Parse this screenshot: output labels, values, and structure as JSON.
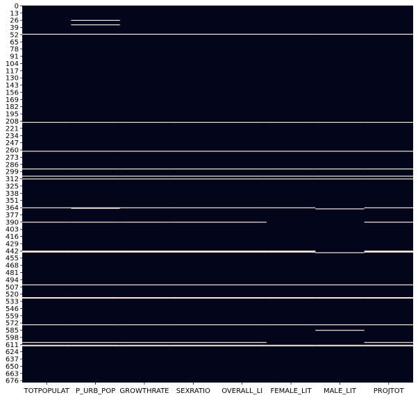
{
  "chart_data": {
    "type": "heatmap",
    "title": "",
    "xlabel": "",
    "ylabel": "",
    "columns": [
      "TOTPOPULAT",
      "P_URB_POP",
      "GROWTHRATE",
      "SEXRATIO",
      "OVERALL_LI",
      "FEMALE_LIT",
      "MALE_LIT",
      "PROJTOT"
    ],
    "row_count": 680,
    "y_tick_labels": [
      "0",
      "13",
      "26",
      "39",
      "52",
      "65",
      "78",
      "91",
      "104",
      "117",
      "130",
      "143",
      "156",
      "169",
      "182",
      "195",
      "208",
      "221",
      "234",
      "247",
      "260",
      "273",
      "286",
      "299",
      "312",
      "325",
      "338",
      "351",
      "364",
      "377",
      "390",
      "403",
      "416",
      "429",
      "442",
      "455",
      "468",
      "481",
      "494",
      "507",
      "520",
      "533",
      "546",
      "559",
      "572",
      "585",
      "598",
      "611",
      "624",
      "637",
      "650",
      "663",
      "676"
    ],
    "value_colors": {
      "present": "#03051a",
      "missing": "#faebdd"
    },
    "missing_rows_all_columns": [
      51,
      210,
      262,
      294,
      307,
      312,
      364,
      390,
      442,
      443,
      444,
      503,
      526,
      527,
      575,
      607,
      612,
      613
    ],
    "missing_rows_by_column": {
      "P_URB_POP": [
        26,
        34,
        365
      ],
      "FEMALE_LIT": [],
      "MALE_LIT": [
        366,
        445,
        585
      ],
      "PROJTOT": []
    },
    "present_rows_excluded": {
      "FEMALE_LIT": [
        390,
        607
      ],
      "MALE_LIT": [
        364,
        390,
        442,
        443,
        444,
        607
      ],
      "PROJTOT": []
    }
  }
}
